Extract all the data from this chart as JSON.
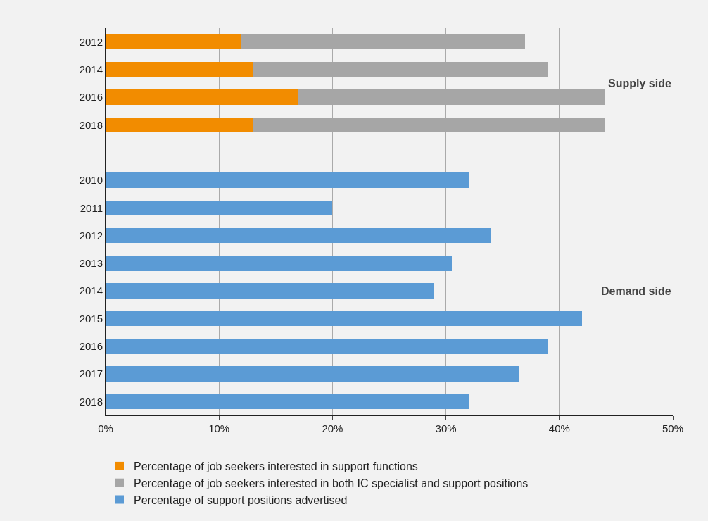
{
  "chart_data": {
    "type": "bar",
    "orientation": "horizontal",
    "stacked": true,
    "categories": [
      "2012",
      "2014",
      "2016",
      "2018",
      null,
      "2010",
      "2011",
      "2012",
      "2013",
      "2014",
      "2015",
      "2016",
      "2017",
      "2018"
    ],
    "series": [
      {
        "name": "Percentage of job seekers interested in support functions",
        "color": "#f28c00",
        "values": [
          12,
          13,
          17,
          13,
          null,
          null,
          null,
          null,
          null,
          null,
          null,
          null,
          null,
          null
        ]
      },
      {
        "name": "Percentage of job seekers interested in both IC specialist and support positions",
        "color": "#a6a6a6",
        "values": [
          25,
          26,
          27,
          31,
          null,
          null,
          null,
          null,
          null,
          null,
          null,
          null,
          null,
          null
        ]
      },
      {
        "name": "Percentage of support positions advertised",
        "color": "#5b9bd5",
        "values": [
          null,
          null,
          null,
          null,
          null,
          32,
          20,
          34,
          30.5,
          29,
          42,
          39,
          36.5,
          32
        ]
      }
    ],
    "xlim": [
      0,
      50
    ],
    "xticks": [
      {
        "value": 0,
        "label": "0%"
      },
      {
        "value": 10,
        "label": "10%"
      },
      {
        "value": 20,
        "label": "20%"
      },
      {
        "value": 30,
        "label": "30%"
      },
      {
        "value": 40,
        "label": "40%"
      },
      {
        "value": 50,
        "label": "50%"
      }
    ],
    "grid": "x",
    "legend": "bottom",
    "annotations": [
      "Supply side",
      "Demand side"
    ]
  }
}
